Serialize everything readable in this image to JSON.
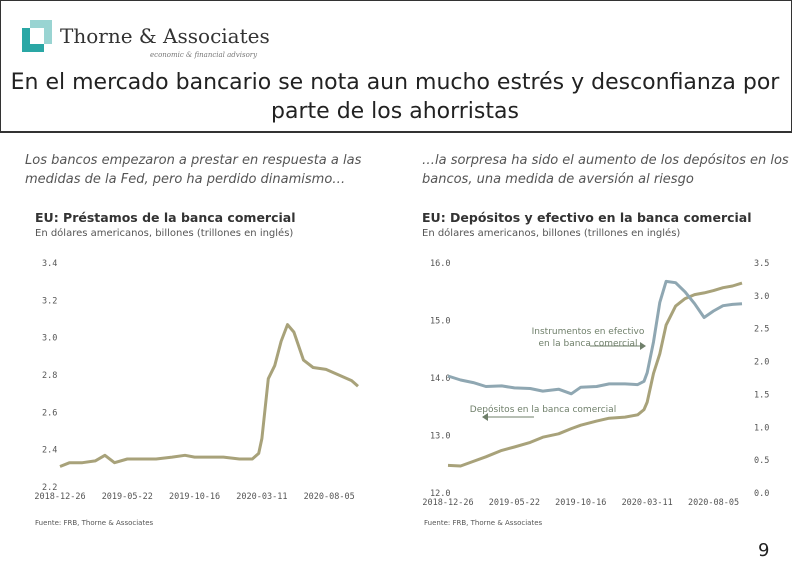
{
  "header": {
    "logo_name": "Thorne & Associates",
    "logo_tagline": "economic & financial advisory",
    "title": "En el mercado bancario se nota aun mucho estrés y desconfianza por parte de los ahorristas"
  },
  "colors": {
    "series_primary": "#a8a27a",
    "series_secondary": "#8fa7b2",
    "logo_teal": "#2aa7a5"
  },
  "left": {
    "subtitle": "Los bancos empezaron a prestar en respuesta a las medidas de la Fed, pero ha perdido dinamismo…",
    "chart_title": "EU: Préstamos de la banca comercial",
    "units": "En dólares americanos, billones (trillones en inglés)",
    "source": "Fuente: FRB, Thorne & Associates"
  },
  "right": {
    "subtitle": "…la sorpresa ha sido el aumento de los depósitos en los bancos, una medida de aversión al riesgo",
    "chart_title": "EU: Depósitos y efectivo en la banca comercial",
    "units": "En dólares americanos, billones (trillones en inglés)",
    "source": "Fuente: FRB, Thorne & Associates"
  },
  "page_number": "9",
  "chart_data": [
    {
      "type": "line",
      "title": "EU: Préstamos de la banca comercial",
      "xlabel": "",
      "ylabel": "",
      "x_ticks": [
        "2018-12-26",
        "2019-05-22",
        "2019-10-16",
        "2020-03-11",
        "2020-08-05"
      ],
      "x_range": [
        "2018-12-26",
        "2020-10-07"
      ],
      "yticks": [
        "3.4",
        "3.2",
        "3.0",
        "2.8",
        "2.6",
        "2.4",
        "2.2"
      ],
      "ylim": [
        2.2,
        3.4
      ],
      "grid": false,
      "series": [
        {
          "color": "#a8a27a",
          "points": [
            [
              "2018-12-26",
              2.31
            ],
            [
              "2019-01-16",
              2.33
            ],
            [
              "2019-02-13",
              2.33
            ],
            [
              "2019-03-13",
              2.34
            ],
            [
              "2019-04-03",
              2.37
            ],
            [
              "2019-04-24",
              2.33
            ],
            [
              "2019-05-22",
              2.35
            ],
            [
              "2019-06-26",
              2.35
            ],
            [
              "2019-07-24",
              2.35
            ],
            [
              "2019-08-28",
              2.36
            ],
            [
              "2019-09-25",
              2.37
            ],
            [
              "2019-10-16",
              2.36
            ],
            [
              "2019-11-20",
              2.36
            ],
            [
              "2019-12-18",
              2.36
            ],
            [
              "2020-01-22",
              2.35
            ],
            [
              "2020-02-19",
              2.35
            ],
            [
              "2020-03-04",
              2.38
            ],
            [
              "2020-03-11",
              2.46
            ],
            [
              "2020-03-25",
              2.78
            ],
            [
              "2020-04-08",
              2.85
            ],
            [
              "2020-04-22",
              2.98
            ],
            [
              "2020-05-06",
              3.07
            ],
            [
              "2020-05-20",
              3.03
            ],
            [
              "2020-06-10",
              2.88
            ],
            [
              "2020-07-01",
              2.84
            ],
            [
              "2020-07-29",
              2.83
            ],
            [
              "2020-08-26",
              2.8
            ],
            [
              "2020-09-23",
              2.77
            ],
            [
              "2020-10-07",
              2.74
            ]
          ]
        }
      ]
    },
    {
      "type": "line",
      "title": "EU: Depósitos y efectivo en la banca comercial",
      "xlabel": "",
      "ylabel": "",
      "x_ticks": [
        "2018-12-26",
        "2019-05-22",
        "2019-10-16",
        "2020-03-11",
        "2020-08-05"
      ],
      "x_range": [
        "2018-12-26",
        "2020-10-07"
      ],
      "yticks_left": [
        "16.0",
        "15.0",
        "14.0",
        "13.0",
        "12.0"
      ],
      "ylim_left": [
        12.0,
        16.0
      ],
      "yticks_right": [
        "3.5",
        "3.0",
        "2.5",
        "2.0",
        "1.5",
        "1.0",
        "0.5",
        "0.0"
      ],
      "ylim_right": [
        0.0,
        3.5
      ],
      "grid": false,
      "annotations": [
        "Instrumentos en efectivo en la banca comercial",
        "Depósitos en la banca comercial"
      ],
      "series": [
        {
          "name": "Depósitos en la banca comercial",
          "axis": "left",
          "color": "#a8a27a",
          "points": [
            [
              "2018-12-26",
              12.48
            ],
            [
              "2019-01-23",
              12.47
            ],
            [
              "2019-02-20",
              12.55
            ],
            [
              "2019-03-20",
              12.63
            ],
            [
              "2019-04-24",
              12.74
            ],
            [
              "2019-05-22",
              12.8
            ],
            [
              "2019-06-26",
              12.88
            ],
            [
              "2019-07-24",
              12.97
            ],
            [
              "2019-08-28",
              13.03
            ],
            [
              "2019-09-25",
              13.12
            ],
            [
              "2019-10-16",
              13.18
            ],
            [
              "2019-11-20",
              13.25
            ],
            [
              "2019-12-18",
              13.3
            ],
            [
              "2020-01-22",
              13.32
            ],
            [
              "2020-02-19",
              13.36
            ],
            [
              "2020-03-04",
              13.45
            ],
            [
              "2020-03-11",
              13.58
            ],
            [
              "2020-03-25",
              14.08
            ],
            [
              "2020-04-08",
              14.42
            ],
            [
              "2020-04-22",
              14.92
            ],
            [
              "2020-05-13",
              15.25
            ],
            [
              "2020-06-03",
              15.38
            ],
            [
              "2020-06-24",
              15.45
            ],
            [
              "2020-07-15",
              15.48
            ],
            [
              "2020-08-05",
              15.52
            ],
            [
              "2020-08-26",
              15.57
            ],
            [
              "2020-09-16",
              15.6
            ],
            [
              "2020-10-07",
              15.65
            ]
          ]
        },
        {
          "name": "Instrumentos en efectivo en la banca comercial",
          "axis": "right",
          "color": "#8fa7b2",
          "points": [
            [
              "2018-12-26",
              1.78
            ],
            [
              "2019-01-23",
              1.72
            ],
            [
              "2019-02-20",
              1.68
            ],
            [
              "2019-03-20",
              1.62
            ],
            [
              "2019-04-24",
              1.63
            ],
            [
              "2019-05-22",
              1.6
            ],
            [
              "2019-06-26",
              1.59
            ],
            [
              "2019-07-24",
              1.55
            ],
            [
              "2019-08-28",
              1.58
            ],
            [
              "2019-09-25",
              1.51
            ],
            [
              "2019-10-16",
              1.61
            ],
            [
              "2019-11-20",
              1.62
            ],
            [
              "2019-12-18",
              1.66
            ],
            [
              "2020-01-22",
              1.66
            ],
            [
              "2020-02-19",
              1.65
            ],
            [
              "2020-03-04",
              1.7
            ],
            [
              "2020-03-11",
              1.83
            ],
            [
              "2020-03-25",
              2.3
            ],
            [
              "2020-04-08",
              2.9
            ],
            [
              "2020-04-22",
              3.22
            ],
            [
              "2020-05-13",
              3.2
            ],
            [
              "2020-06-03",
              3.06
            ],
            [
              "2020-06-24",
              2.88
            ],
            [
              "2020-07-15",
              2.67
            ],
            [
              "2020-08-05",
              2.77
            ],
            [
              "2020-08-26",
              2.85
            ],
            [
              "2020-09-16",
              2.87
            ],
            [
              "2020-10-07",
              2.88
            ]
          ]
        }
      ]
    }
  ]
}
